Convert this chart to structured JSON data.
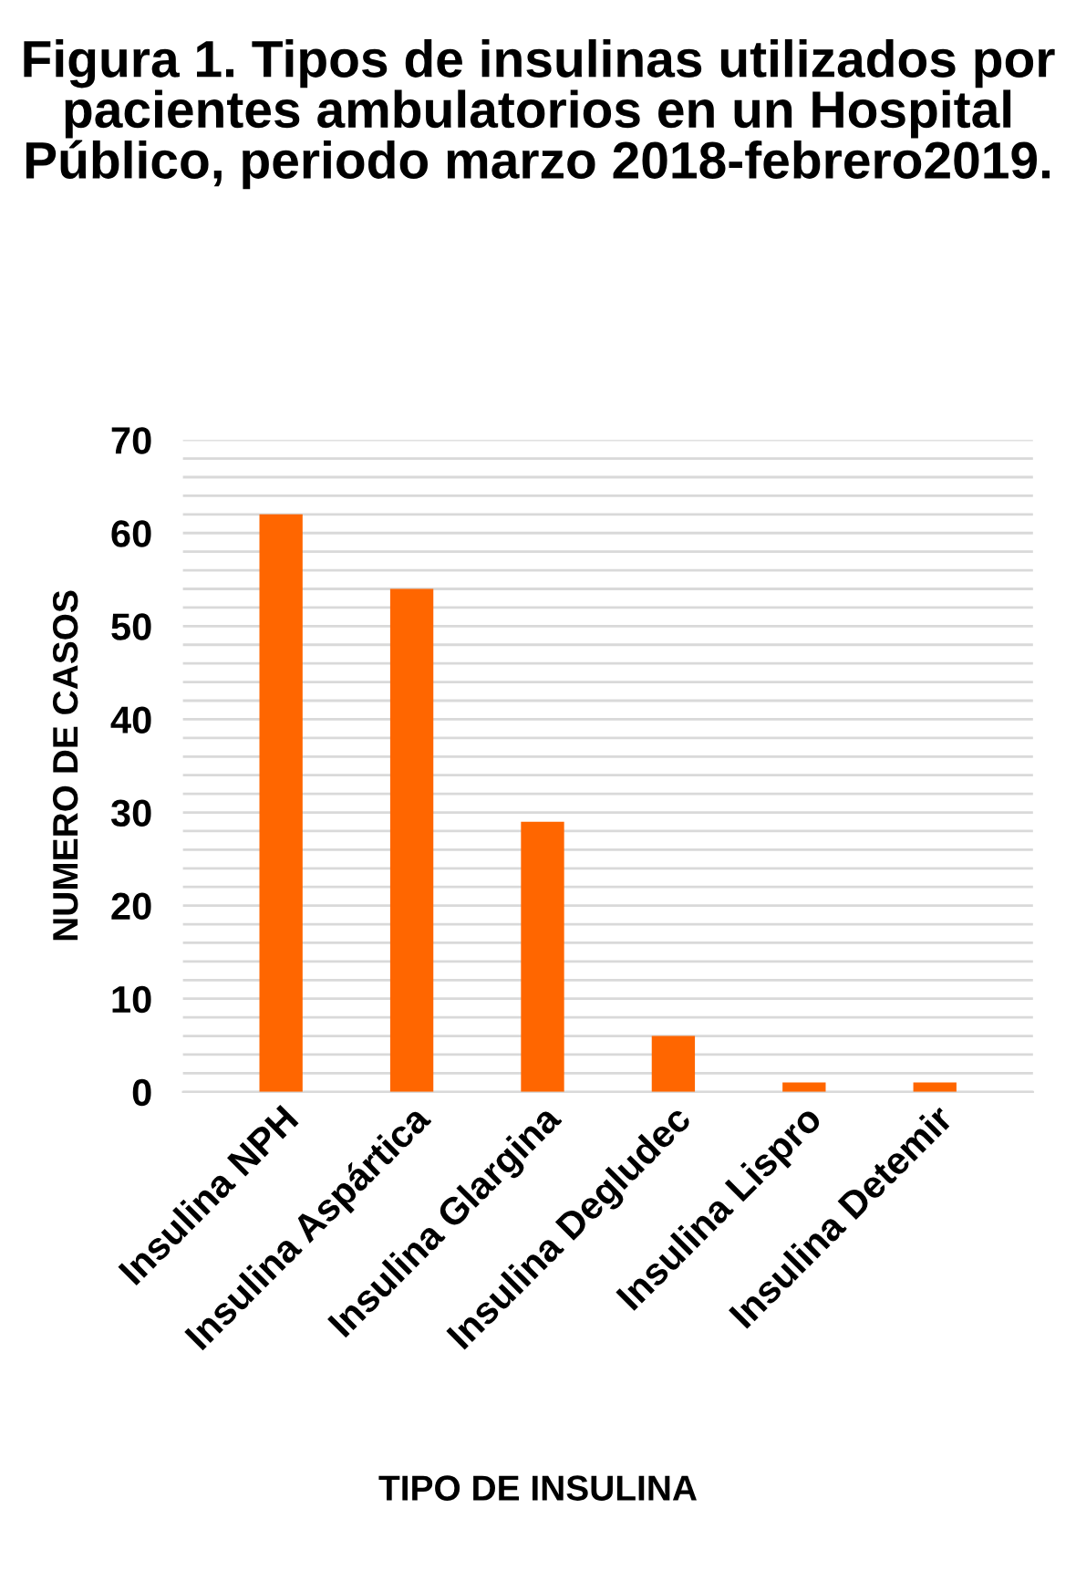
{
  "chart_data": {
    "type": "bar",
    "title": "Figura 1. Tipos de insulinas utilizados por pacientes ambulatorios en un Hospital Público, periodo marzo 2018-febrero2019.",
    "xlabel": "TIPO DE INSULINA",
    "ylabel": "NUMERO DE CASOS",
    "categories": [
      "Insulina NPH",
      "Insulina Aspártica",
      "Insulina Glargina",
      "Insulina Degludec",
      "Insulina Lispro",
      "Insulina Detemir"
    ],
    "values": [
      62,
      54,
      29,
      6,
      1,
      1
    ],
    "color": "#ff6600",
    "ylim": [
      0,
      70
    ],
    "yticks": [
      0,
      {
        "value": 2,
        "label": null
      },
      {
        "value": 4,
        "label": null
      },
      {
        "value": 6,
        "label": null
      },
      {
        "value": 8,
        "label": null
      },
      10,
      {
        "value": 12,
        "label": null
      },
      {
        "value": 14,
        "label": null
      },
      {
        "value": 16,
        "label": null
      },
      {
        "value": 18,
        "label": null
      },
      20,
      {
        "value": 22,
        "label": null
      },
      {
        "value": 24,
        "label": null
      },
      {
        "value": 26,
        "label": null
      },
      {
        "value": 28,
        "label": null
      },
      30,
      {
        "value": 32,
        "label": null
      },
      {
        "value": 34,
        "label": null
      },
      {
        "value": 36,
        "label": null
      },
      {
        "value": 38,
        "label": null
      },
      40,
      {
        "value": 42,
        "label": null
      },
      {
        "value": 44,
        "label": null
      },
      {
        "value": 46,
        "label": null
      },
      {
        "value": 48,
        "label": null
      },
      50,
      {
        "value": 52,
        "label": null
      },
      {
        "value": 54,
        "label": null
      },
      {
        "value": 56,
        "label": null
      },
      {
        "value": 58,
        "label": null
      },
      60,
      {
        "value": 62,
        "label": null
      },
      {
        "value": 64,
        "label": null
      },
      {
        "value": 66,
        "label": null
      },
      {
        "value": 68,
        "label": null
      },
      70
    ],
    "grid": "y"
  }
}
